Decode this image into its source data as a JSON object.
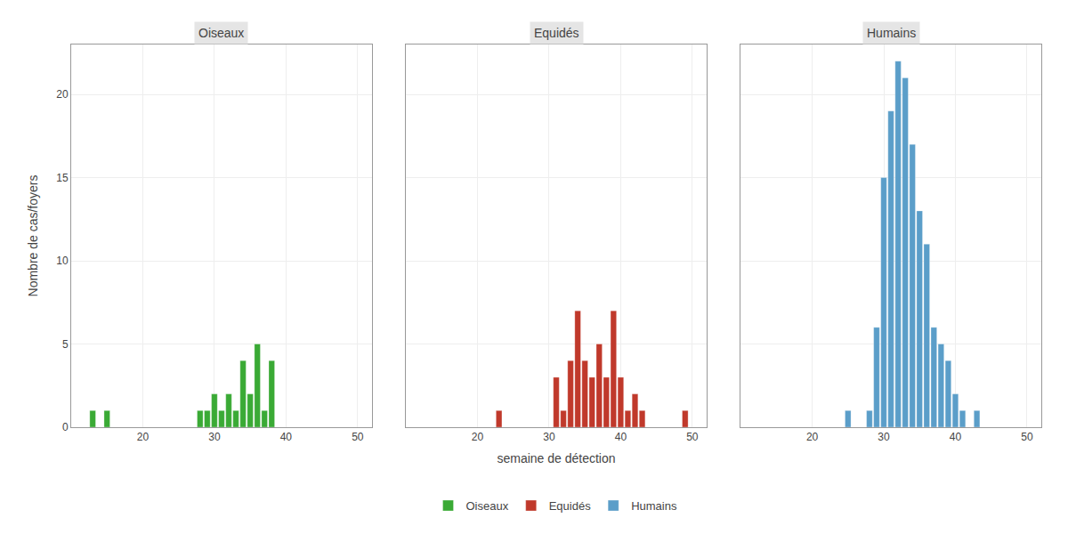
{
  "chart_data": [
    {
      "type": "bar",
      "title": "Oiseaux",
      "ylabel": "Nombre de cas/foyers",
      "x": [
        13,
        15,
        28,
        29,
        30,
        31,
        32,
        33,
        34,
        35,
        36,
        37,
        38
      ],
      "series": [
        {
          "name": "Oiseaux",
          "color": "#3aaa35",
          "values": [
            1,
            1,
            1,
            1,
            2,
            1,
            2,
            1,
            4,
            2,
            5,
            1,
            4
          ]
        }
      ],
      "xlim": [
        10,
        52
      ],
      "xticks": [
        20,
        30,
        40,
        50
      ],
      "ylim": [
        0,
        23
      ],
      "yticks": [
        0,
        5,
        10,
        15,
        20
      ],
      "grid": true,
      "legend": "bottom"
    },
    {
      "type": "bar",
      "title": "Equidés",
      "xlabel": "semaine de détection",
      "x": [
        23,
        31,
        32,
        33,
        34,
        35,
        36,
        37,
        38,
        39,
        40,
        41,
        42,
        43,
        49
      ],
      "series": [
        {
          "name": "Equidés",
          "color": "#c0392b",
          "values": [
            1,
            3,
            1,
            4,
            7,
            4,
            3,
            5,
            3,
            7,
            3,
            1,
            2,
            1,
            1
          ]
        }
      ],
      "xlim": [
        10,
        52
      ],
      "xticks": [
        20,
        30,
        40,
        50
      ],
      "ylim": [
        0,
        23
      ],
      "yticks": [
        0,
        5,
        10,
        15,
        20
      ],
      "grid": true,
      "tick_labels": "x",
      "legend": "bottom"
    },
    {
      "type": "bar",
      "title": "Humains",
      "x": [
        25,
        28,
        29,
        30,
        31,
        32,
        33,
        34,
        35,
        36,
        37,
        38,
        39,
        40,
        41,
        43
      ],
      "series": [
        {
          "name": "Humains",
          "color": "#5b9ec9",
          "values": [
            1,
            1,
            6,
            15,
            19,
            22,
            21,
            17,
            13,
            11,
            6,
            5,
            4,
            2,
            1,
            1
          ]
        }
      ],
      "xlim": [
        10,
        52
      ],
      "xticks": [
        20,
        30,
        40,
        50
      ],
      "ylim": [
        0,
        23
      ],
      "yticks": [
        0,
        5,
        10,
        15,
        20
      ],
      "grid": true,
      "tick_labels": "x",
      "legend": "bottom"
    }
  ]
}
